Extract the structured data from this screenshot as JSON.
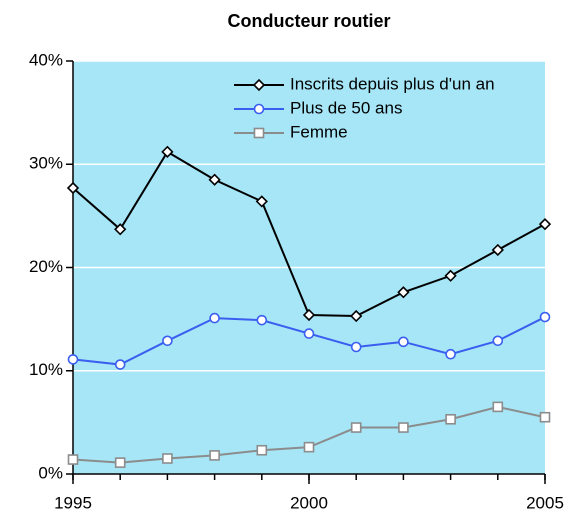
{
  "chart_data": {
    "type": "line",
    "title": "Conducteur routier",
    "x": [
      1995,
      1996,
      1997,
      1998,
      1999,
      2000,
      2001,
      2002,
      2003,
      2004,
      2005
    ],
    "xlim": [
      1995,
      2005
    ],
    "xticks": [
      1995,
      2000,
      2005
    ],
    "ylim": [
      0,
      40
    ],
    "yticks": [
      {
        "value": 0,
        "label": "0%"
      },
      {
        "value": 10,
        "label": "10%"
      },
      {
        "value": 20,
        "label": "20%"
      },
      {
        "value": 30,
        "label": "30%"
      },
      {
        "value": 40,
        "label": "40%"
      }
    ],
    "grid": true,
    "legend": "upper right",
    "background": "#a6e6f7",
    "series": [
      {
        "name": "Inscrits depuis plus d'un an",
        "color": "#000000",
        "marker": "diamond",
        "values": [
          27.7,
          23.7,
          31.2,
          28.5,
          26.4,
          15.4,
          15.3,
          17.6,
          19.2,
          21.7,
          24.2
        ]
      },
      {
        "name": "Plus de 50 ans",
        "color": "#3a5ef0",
        "marker": "circle",
        "values": [
          11.1,
          10.6,
          12.9,
          15.1,
          14.9,
          13.6,
          12.3,
          12.8,
          11.6,
          12.9,
          15.2
        ]
      },
      {
        "name": "Femme",
        "color": "#8c8c8c",
        "marker": "square",
        "values": [
          1.4,
          1.1,
          1.5,
          1.8,
          2.3,
          2.6,
          4.5,
          4.5,
          5.3,
          6.5,
          5.5
        ]
      }
    ]
  }
}
